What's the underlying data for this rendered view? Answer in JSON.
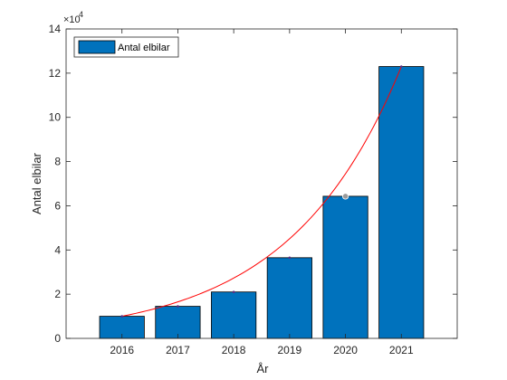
{
  "chart_data": {
    "type": "bar",
    "categories": [
      "2016",
      "2017",
      "2018",
      "2019",
      "2020",
      "2021"
    ],
    "values": [
      10000,
      14500,
      21000,
      36500,
      64300,
      123000
    ],
    "series": [
      {
        "name": "Antal elbilar",
        "values": [
          10000,
          14500,
          21000,
          36500,
          64300,
          123000
        ],
        "bar_color": "#0072BD",
        "edge_color": "#000000"
      }
    ],
    "trend": {
      "type": "exponential-fit",
      "color": "#FF0000",
      "x_range": [
        "2016",
        "2021"
      ]
    },
    "highlight_point": {
      "x": "2020",
      "y": 64300
    },
    "xlabel": "År",
    "ylabel": "Antal elbilar",
    "ylim": [
      0,
      140000
    ],
    "yticks": [
      0,
      20000,
      40000,
      60000,
      80000,
      100000,
      120000,
      140000
    ],
    "ytick_labels": [
      "0",
      "2",
      "4",
      "6",
      "8",
      "10",
      "12",
      "14"
    ],
    "y_exponent": {
      "base": "×10",
      "power": "4"
    },
    "xlim": [
      "2015",
      "2022"
    ],
    "grid": false,
    "legend_position": "top-left"
  }
}
